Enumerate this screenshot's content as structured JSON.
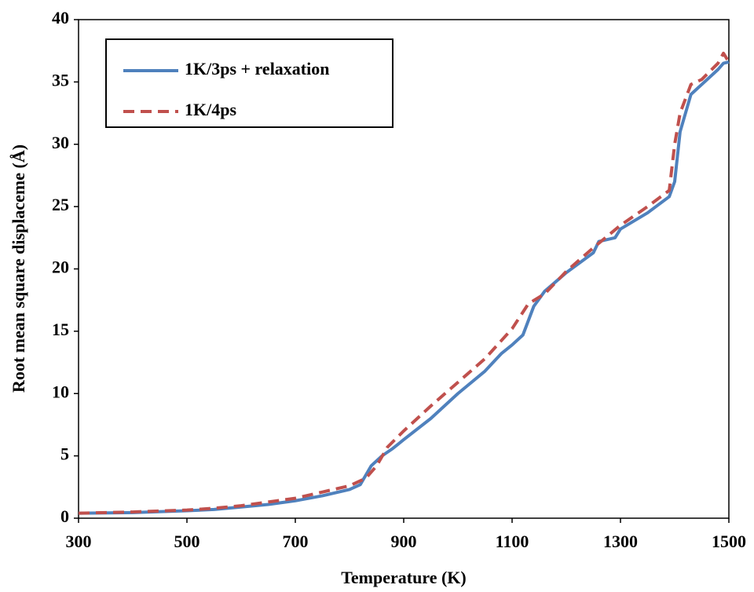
{
  "chart_data": {
    "type": "line",
    "x_label": "Temperature (K)",
    "y_label": "Root mean square displaceme (Å)",
    "xlim": [
      300,
      1500
    ],
    "xticks": [
      300,
      500,
      700,
      900,
      1100,
      1300,
      1500
    ],
    "ylim": [
      0,
      40
    ],
    "yticks": [
      0,
      5,
      10,
      15,
      20,
      25,
      30,
      35,
      40
    ],
    "grid": false,
    "legend": "upper left",
    "series": [
      {
        "name": "1K/3ps + relaxation",
        "color": "#4f81bd",
        "dash": "solid",
        "x": [
          300,
          400,
          500,
          550,
          600,
          650,
          700,
          750,
          800,
          820,
          840,
          860,
          880,
          900,
          950,
          1000,
          1050,
          1080,
          1100,
          1120,
          1140,
          1160,
          1200,
          1250,
          1260,
          1290,
          1300,
          1350,
          1390,
          1400,
          1410,
          1430,
          1450,
          1480,
          1490,
          1500
        ],
        "values": [
          0.4,
          0.45,
          0.6,
          0.7,
          0.9,
          1.1,
          1.4,
          1.8,
          2.3,
          2.7,
          4.2,
          5.0,
          5.6,
          6.3,
          8.0,
          10.0,
          11.8,
          13.2,
          13.9,
          14.7,
          17.0,
          18.2,
          19.7,
          21.3,
          22.2,
          22.5,
          23.2,
          24.5,
          25.8,
          27.0,
          31.0,
          34.0,
          34.8,
          36.0,
          36.5,
          36.6
        ]
      },
      {
        "name": "1K/4ps",
        "color": "#c0504d",
        "dash": "dashed",
        "x": [
          300,
          400,
          500,
          550,
          600,
          650,
          700,
          750,
          800,
          830,
          850,
          870,
          900,
          950,
          1000,
          1050,
          1100,
          1130,
          1160,
          1200,
          1250,
          1300,
          1350,
          1390,
          1400,
          1410,
          1430,
          1450,
          1480,
          1490,
          1500
        ],
        "values": [
          0.4,
          0.5,
          0.65,
          0.8,
          1.0,
          1.3,
          1.6,
          2.1,
          2.6,
          3.2,
          4.2,
          5.7,
          7.0,
          9.0,
          10.9,
          12.8,
          15.2,
          17.2,
          18.0,
          19.8,
          21.7,
          23.5,
          25.0,
          26.3,
          30.0,
          32.5,
          34.8,
          35.2,
          36.5,
          37.3,
          36.6
        ]
      }
    ]
  }
}
